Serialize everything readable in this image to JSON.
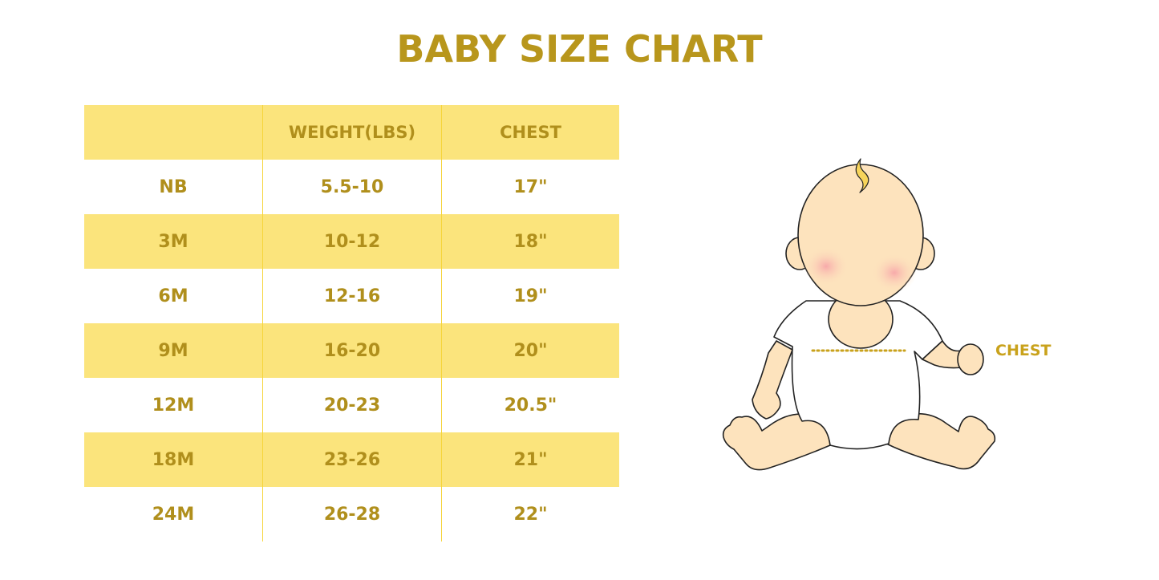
{
  "title": "BABY SIZE CHART",
  "table": {
    "headers": [
      "",
      "WEIGHT(LBS)",
      "CHEST"
    ],
    "rows": [
      [
        "NB",
        "5.5-10",
        "17\""
      ],
      [
        "3M",
        "10-12",
        "18\""
      ],
      [
        "6M",
        "12-16",
        "19\""
      ],
      [
        "9M",
        "16-20",
        "20\""
      ],
      [
        "12M",
        "20-23",
        "20.5\""
      ],
      [
        "18M",
        "23-26",
        "21\""
      ],
      [
        "24M",
        "26-28",
        "22\""
      ]
    ]
  },
  "illustration": {
    "label": "CHEST",
    "icon": "baby-illustration"
  },
  "colors": {
    "accent_text": "#b08f1c",
    "row_highlight": "#fbe47c",
    "skin": "#fde3bd"
  }
}
